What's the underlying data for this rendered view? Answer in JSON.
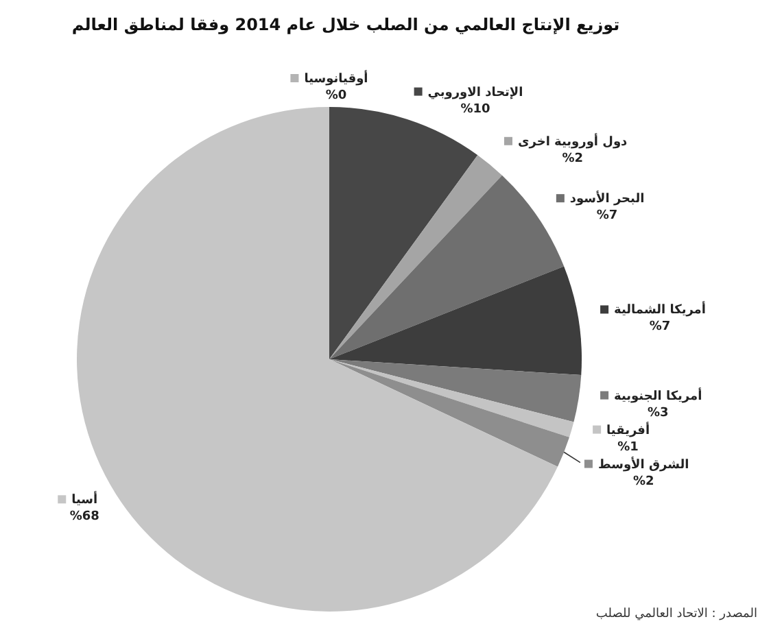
{
  "chart_data": {
    "type": "pie",
    "title": "توزيع الإنتاج العالمي من الصلب خلال عام 2014 وفقا لمناطق العالم",
    "categories": [
      "أوقيانوسيا",
      "الإتحاد الاوروبي",
      "دول أوروبية اخرى",
      "البحر الأسود",
      "أمريكا الشمالية",
      "أمريكا الجنوبية",
      "أفريقيا",
      "الشرق الأوسط",
      "أسيا"
    ],
    "values": [
      0,
      10,
      2,
      7,
      7,
      3,
      1,
      2,
      68
    ],
    "colors": [
      "#b4b4b4",
      "#474747",
      "#a5a5a5",
      "#6f6f6f",
      "#3d3d3d",
      "#7b7b7b",
      "#c4c4c4",
      "#8e8e8e",
      "#c6c6c6"
    ],
    "value_labels": [
      "%0",
      "%10",
      "%2",
      "%7",
      "%7",
      "%3",
      "%1",
      "%2",
      "%68"
    ],
    "legend": "right",
    "annotations": [
      "المصدر : الاتحاد العالمي للصلب"
    ]
  }
}
